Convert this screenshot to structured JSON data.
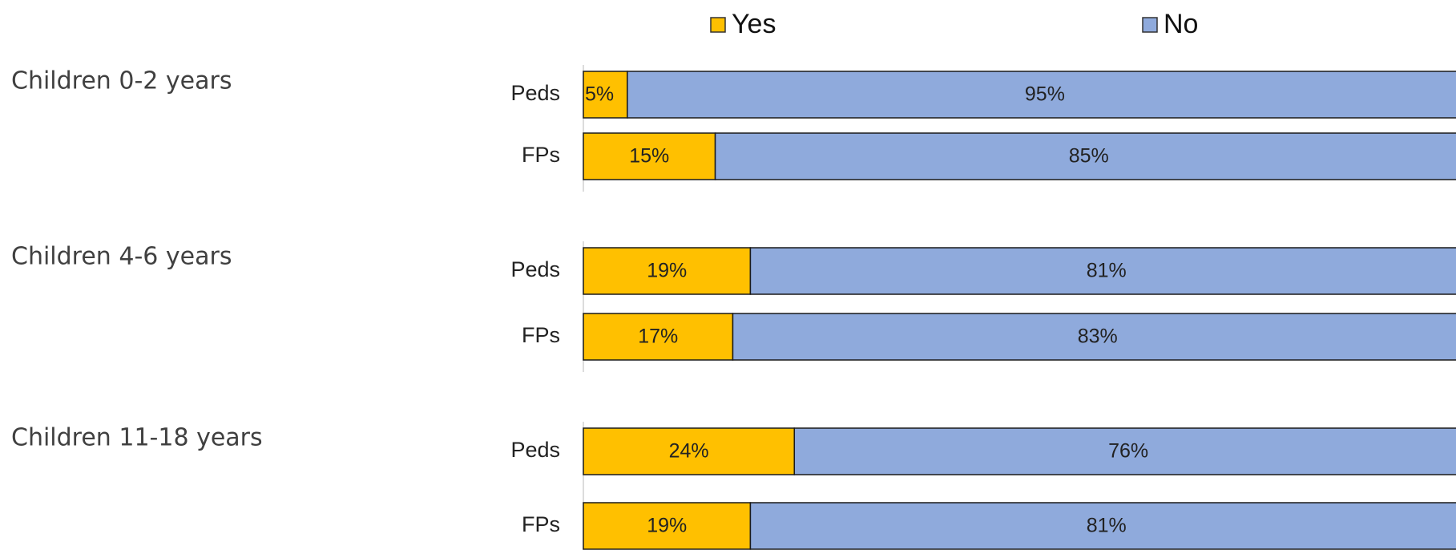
{
  "chart_data": {
    "type": "bar",
    "orientation": "horizontal",
    "stacked": true,
    "groups": [
      "Children 0-2 years",
      "Children 4-6 years",
      "Children 11-18 years"
    ],
    "categories": [
      "Peds",
      "FPs",
      "Peds",
      "FPs",
      "Peds",
      "FPs"
    ],
    "series": [
      {
        "name": "Yes",
        "color": "#ffc000",
        "values": [
          5,
          15,
          19,
          17,
          24,
          19
        ],
        "value_labels": [
          "5%",
          "15%",
          "19%",
          "17%",
          "24%",
          "19%"
        ]
      },
      {
        "name": "No",
        "color": "#8faadc",
        "values": [
          95,
          85,
          81,
          83,
          76,
          81
        ],
        "value_labels": [
          "95%",
          "85%",
          "81%",
          "83%",
          "76%",
          "81%"
        ]
      }
    ],
    "xlim": [
      0,
      100
    ]
  }
}
